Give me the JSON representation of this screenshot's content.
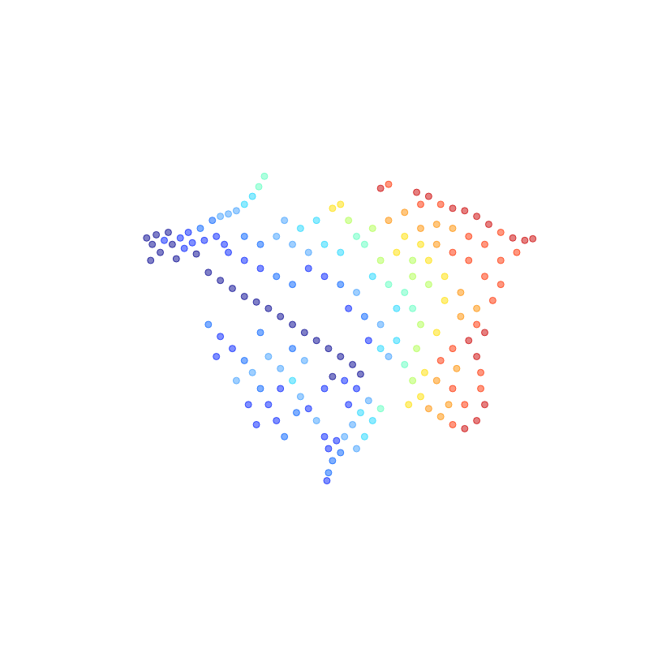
{
  "chart_data": {
    "type": "scatter",
    "marker": "circle",
    "grid": false,
    "tick_labels": false,
    "xlim": [
      0,
      800
    ],
    "ylim": [
      800,
      0
    ],
    "x": [
      178,
      185,
      190,
      195,
      200,
      205,
      210,
      215,
      220,
      225,
      230,
      235,
      240,
      245,
      250,
      183,
      260,
      270,
      280,
      290,
      300,
      310,
      318,
      325,
      265,
      275,
      255,
      270,
      285,
      300,
      315,
      330,
      345,
      360,
      375,
      390,
      405,
      420,
      435,
      445,
      410,
      425,
      440,
      400,
      280,
      300,
      320,
      340,
      360,
      300,
      320,
      340,
      360,
      380,
      350,
      370,
      390,
      410,
      420,
      470,
      480,
      380,
      400,
      420,
      440,
      400,
      420,
      440,
      460,
      430,
      450,
      470,
      460,
      480,
      430,
      450,
      470,
      490,
      500,
      510,
      490,
      500,
      480,
      500,
      520,
      515,
      530,
      545,
      560,
      575,
      590,
      605,
      620,
      635,
      650,
      660,
      640,
      620,
      600,
      580,
      560,
      540,
      520,
      540,
      560,
      580,
      600,
      620,
      610,
      590,
      570,
      550,
      530,
      520,
      510,
      530,
      550,
      570,
      590,
      600,
      510,
      520,
      540,
      490,
      470,
      455,
      480,
      500,
      510,
      520,
      530,
      545,
      560,
      575,
      590,
      600,
      595,
      595,
      590,
      580,
      560,
      545,
      540,
      560,
      575,
      555,
      565,
      525,
      515,
      505,
      255,
      270,
      285,
      300,
      310,
      320,
      330,
      340,
      350,
      330,
      345,
      360,
      370,
      380,
      390,
      360,
      375,
      345,
      365,
      290,
      305,
      315,
      320,
      265,
      400,
      405,
      410,
      405,
      403,
      415,
      420,
      425,
      435,
      445,
      430,
      455,
      460,
      470,
      440,
      450
    ],
    "y": [
      292,
      300,
      288,
      310,
      295,
      285,
      300,
      318,
      292,
      305,
      285,
      298,
      312,
      280,
      295,
      320,
      270,
      265,
      262,
      258,
      250,
      240,
      228,
      215,
      290,
      300,
      335,
      345,
      355,
      365,
      372,
      380,
      390,
      400,
      410,
      420,
      430,
      440,
      450,
      462,
      465,
      470,
      480,
      480,
      310,
      320,
      330,
      340,
      350,
      290,
      300,
      290,
      300,
      310,
      270,
      280,
      270,
      255,
      250,
      230,
      225,
      330,
      340,
      350,
      360,
      300,
      310,
      290,
      280,
      270,
      300,
      320,
      340,
      350,
      380,
      390,
      400,
      380,
      360,
      340,
      310,
      290,
      270,
      260,
      250,
      235,
      240,
      250,
      255,
      258,
      265,
      275,
      285,
      292,
      295,
      293,
      310,
      320,
      300,
      290,
      280,
      275,
      280,
      300,
      310,
      320,
      340,
      350,
      370,
      380,
      360,
      340,
      320,
      300,
      320,
      350,
      370,
      390,
      400,
      410,
      380,
      400,
      410,
      420,
      430,
      420,
      440,
      450,
      470,
      490,
      505,
      515,
      525,
      530,
      520,
      500,
      480,
      460,
      440,
      420,
      430,
      445,
      470,
      480,
      500,
      500,
      455,
      460,
      430,
      500,
      400,
      415,
      430,
      445,
      460,
      480,
      500,
      520,
      540,
      440,
      455,
      470,
      490,
      505,
      520,
      430,
      445,
      480,
      510,
      470,
      500,
      525,
      410,
      440,
      540,
      555,
      570,
      585,
      595,
      545,
      560,
      540,
      525,
      510,
      500,
      495,
      520,
      505,
      555,
      540
    ],
    "colors": [
      "#00008f",
      "#00008f",
      "#00008f",
      "#00008f",
      "#0020ff",
      "#00008f",
      "#00008f",
      "#00008f",
      "#0020ff",
      "#0020ff",
      "#0020ff",
      "#0020ff",
      "#00008f",
      "#0060ff",
      "#0020ff",
      "#00008f",
      "#0060ff",
      "#40a0ff",
      "#40a0ff",
      "#40a0ff",
      "#20d8ff",
      "#20d8ff",
      "#60ffc0",
      "#60ffc0",
      "#0020ff",
      "#0020ff",
      "#00008f",
      "#00008f",
      "#00008f",
      "#00008f",
      "#00008f",
      "#00008f",
      "#00008f",
      "#00008f",
      "#00008f",
      "#00008f",
      "#00008f",
      "#00008f",
      "#00008f",
      "#00008f",
      "#00008f",
      "#0020ff",
      "#0020ff",
      "#0020ff",
      "#0020ff",
      "#0020ff",
      "#0020ff",
      "#0060ff",
      "#0060ff",
      "#0060ff",
      "#0060ff",
      "#40a0ff",
      "#40a0ff",
      "#40a0ff",
      "#40a0ff",
      "#20d8ff",
      "#20d8ff",
      "#ffe000",
      "#ffe000",
      "#cc0000",
      "#ff3000",
      "#0020ff",
      "#0020ff",
      "#0060ff",
      "#40a0ff",
      "#20d8ff",
      "#20d8ff",
      "#60ffc0",
      "#b0ff50",
      "#b0ff50",
      "#60ffc0",
      "#b0ff50",
      "#20d8ff",
      "#60ffc0",
      "#0020ff",
      "#0060ff",
      "#40a0ff",
      "#20d8ff",
      "#60ffc0",
      "#b0ff50",
      "#ffe000",
      "#ffe000",
      "#ff9000",
      "#ff9000",
      "#ff3000",
      "#cc0000",
      "#cc0000",
      "#ff3000",
      "#cc0000",
      "#cc0000",
      "#cc0000",
      "#cc0000",
      "#ff3000",
      "#cc0000",
      "#cc0000",
      "#cc0000",
      "#ff3000",
      "#ff3000",
      "#ff3000",
      "#ff3000",
      "#ff9000",
      "#ff9000",
      "#ff9000",
      "#ff9000",
      "#ff3000",
      "#ff3000",
      "#ff3000",
      "#ff3000",
      "#ff3000",
      "#ff9000",
      "#ff9000",
      "#ffe000",
      "#ffe000",
      "#ffe000",
      "#b0ff50",
      "#b0ff50",
      "#ffe000",
      "#ff9000",
      "#ff3000",
      "#cc0000",
      "#60ffc0",
      "#b0ff50",
      "#ffe000",
      "#20d8ff",
      "#20d8ff",
      "#0020ff",
      "#40a0ff",
      "#60ffc0",
      "#b0ff50",
      "#ffe000",
      "#ff9000",
      "#ff9000",
      "#ff3000",
      "#cc0000",
      "#cc0000",
      "#cc0000",
      "#ff3000",
      "#ff3000",
      "#cc0000",
      "#cc0000",
      "#ff3000",
      "#ff3000",
      "#ff9000",
      "#ff3000",
      "#ff3000",
      "#ff9000",
      "#ff9000",
      "#ffe000",
      "#b0ff50",
      "#ffe000",
      "#0060ff",
      "#0020ff",
      "#0020ff",
      "#0060ff",
      "#40a0ff",
      "#0060ff",
      "#0020ff",
      "#0020ff",
      "#0060ff",
      "#40a0ff",
      "#40a0ff",
      "#20d8ff",
      "#40a0ff",
      "#0020ff",
      "#40a0ff",
      "#0060ff",
      "#40a0ff",
      "#0020ff",
      "#0060ff",
      "#40a0ff",
      "#0020ff",
      "#0020ff",
      "#0060ff",
      "#0020ff",
      "#0020ff",
      "#0020ff",
      "#0060ff",
      "#0060ff",
      "#0020ff",
      "#0020ff",
      "#0060ff",
      "#40a0ff",
      "#40a0ff",
      "#20d8ff",
      "#0020ff",
      "#40a0ff",
      "#20d8ff",
      "#60ffc0",
      "#40a0ff",
      "#20d8ff"
    ]
  }
}
